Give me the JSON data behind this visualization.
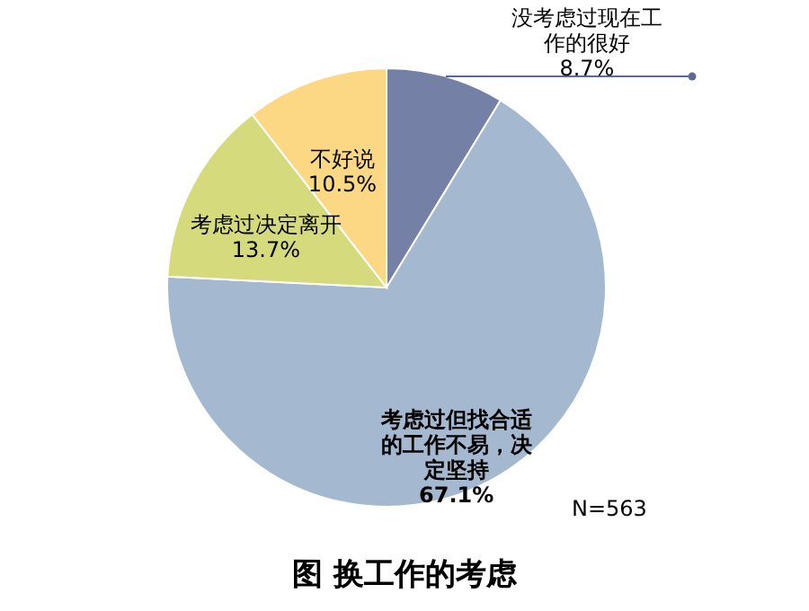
{
  "chart_data": {
    "type": "pie",
    "title": "图 换工作的考虑",
    "categories": [
      "没考虑过现在工作的很好",
      "考虑过但找合适的工作不易，决定坚持",
      "考虑过决定离开",
      "不好说"
    ],
    "values": [
      8.7,
      67.1,
      13.7,
      10.5
    ],
    "value_labels": [
      "8.7%",
      "67.1%",
      "13.7%",
      "10.5%"
    ],
    "colors": [
      "#7580a6",
      "#a4b9d0",
      "#d5db7d",
      "#fcd784"
    ],
    "annotations": [
      "N=563"
    ]
  }
}
